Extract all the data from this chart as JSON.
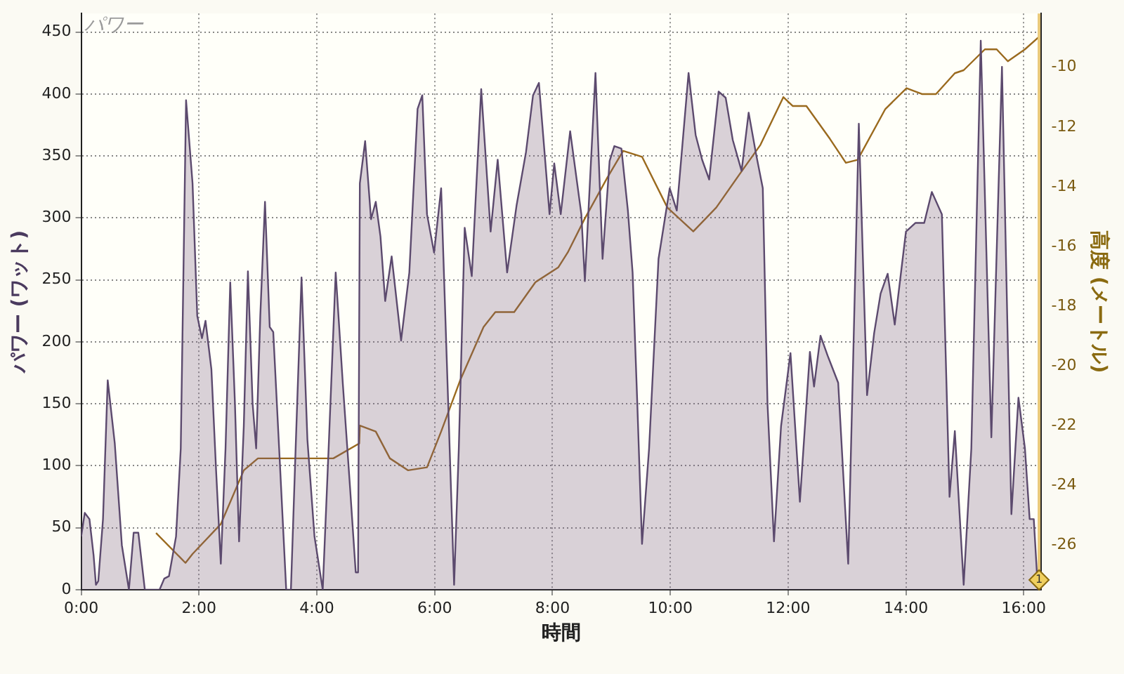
{
  "chart_data": {
    "type": "area",
    "title": "パワー",
    "xlabel": "時間",
    "ylabel": "パワー (ワット)",
    "y2label": "高度 (メートル)",
    "xlim": [
      0,
      16.3
    ],
    "xticks": [
      {
        "value": 0,
        "label": "0:00"
      },
      {
        "value": 2,
        "label": "2:00"
      },
      {
        "value": 4,
        "label": "4:00"
      },
      {
        "value": 6,
        "label": "6:00"
      },
      {
        "value": 8,
        "label": "8:00"
      },
      {
        "value": 10,
        "label": "10:00"
      },
      {
        "value": 12,
        "label": "12:00"
      },
      {
        "value": 14,
        "label": "14:00"
      },
      {
        "value": 16,
        "label": "16:00"
      }
    ],
    "ylim": [
      0,
      465
    ],
    "yticks": [
      0,
      50,
      100,
      150,
      200,
      250,
      300,
      350,
      400,
      450
    ],
    "y2lim": [
      -27.5,
      -8.2
    ],
    "y2ticks": [
      -26,
      -24,
      -22,
      -20,
      -18,
      -16,
      -14,
      -12,
      -10
    ],
    "grid": true,
    "legend": false,
    "marker": "none",
    "line_style": "solid",
    "ref_lines": [
      {
        "axis": "x",
        "value": 16.26,
        "color": "#e8c878"
      }
    ],
    "annotations": [
      {
        "text": "1",
        "x": 16.26,
        "y": 0
      }
    ],
    "series": [
      {
        "type": "area",
        "color": "#5c4a6e",
        "x": [
          0,
          0.06,
          0.14,
          0.21,
          0.25,
          0.29,
          0.37,
          0.45,
          0.57,
          0.69,
          0.81,
          0.89,
          0.97,
          1.08,
          1.33,
          1.41,
          1.49,
          1.61,
          1.69,
          1.78,
          1.89,
          1.97,
          2.05,
          2.11,
          2.21,
          2.29,
          2.37,
          2.45,
          2.53,
          2.61,
          2.68,
          2.76,
          2.83,
          2.91,
          2.97,
          3.04,
          3.12,
          3.2,
          3.26,
          3.36,
          3.48,
          3.56,
          3.64,
          3.74,
          3.84,
          3.96,
          4.1,
          4.2,
          4.32,
          4.44,
          4.56,
          4.66,
          4.7,
          4.73,
          4.82,
          4.92,
          5.0,
          5.08,
          5.16,
          5.27,
          5.43,
          5.57,
          5.71,
          5.79,
          5.87,
          5.99,
          6.11,
          6.23,
          6.33,
          6.41,
          6.51,
          6.63,
          6.79,
          6.95,
          7.07,
          7.23,
          7.39,
          7.55,
          7.67,
          7.77,
          7.95,
          8.03,
          8.14,
          8.3,
          8.49,
          8.55,
          8.73,
          8.85,
          8.97,
          9.05,
          9.17,
          9.28,
          9.36,
          9.44,
          9.52,
          9.64,
          9.8,
          9.99,
          10.11,
          10.31,
          10.43,
          10.54,
          10.66,
          10.82,
          10.94,
          11.06,
          11.21,
          11.33,
          11.45,
          11.57,
          11.65,
          11.76,
          11.88,
          12.04,
          12.2,
          12.37,
          12.44,
          12.55,
          12.67,
          12.85,
          13.02,
          13.14,
          13.2,
          13.34,
          13.46,
          13.57,
          13.69,
          13.81,
          14.0,
          14.16,
          14.31,
          14.44,
          14.61,
          14.74,
          14.83,
          14.98,
          15.11,
          15.27,
          15.45,
          15.63,
          15.79,
          15.91,
          16.02,
          16.1,
          16.17,
          16.24
        ],
        "values": [
          43,
          62,
          57,
          28,
          4,
          7,
          57,
          169,
          118,
          36,
          0,
          46,
          46,
          0,
          0,
          9,
          11,
          43,
          114,
          395,
          328,
          221,
          203,
          217,
          178,
          96,
          21,
          114,
          248,
          150,
          39,
          132,
          257,
          150,
          114,
          221,
          313,
          212,
          208,
          114,
          0,
          0,
          114,
          252,
          121,
          43,
          0,
          114,
          256,
          167,
          85,
          14,
          14,
          328,
          362,
          299,
          313,
          285,
          233,
          269,
          201,
          256,
          388,
          399,
          303,
          272,
          324,
          150,
          4,
          114,
          292,
          253,
          404,
          289,
          347,
          256,
          310,
          353,
          399,
          409,
          303,
          344,
          303,
          370,
          303,
          249,
          417,
          267,
          346,
          358,
          356,
          306,
          256,
          150,
          37,
          114,
          267,
          324,
          306,
          417,
          367,
          347,
          331,
          402,
          397,
          363,
          338,
          385,
          353,
          324,
          150,
          39,
          132,
          191,
          71,
          192,
          164,
          205,
          189,
          167,
          21,
          256,
          376,
          157,
          207,
          239,
          255,
          214,
          289,
          296,
          296,
          321,
          303,
          75,
          128,
          4,
          114,
          443,
          123,
          422,
          61,
          155,
          114,
          57,
          57,
          0
        ]
      },
      {
        "type": "line",
        "axis": "y2",
        "color": "#9a6a1e",
        "x": [
          1.27,
          1.77,
          1.89,
          2.37,
          2.76,
          3.0,
          4.28,
          4.72,
          4.73,
          5.0,
          5.24,
          5.55,
          5.87,
          6.11,
          6.43,
          6.83,
          7.03,
          7.35,
          7.71,
          8.1,
          8.26,
          8.54,
          8.93,
          9.2,
          9.52,
          9.95,
          10.39,
          10.78,
          11.17,
          11.53,
          11.92,
          12.08,
          12.31,
          12.71,
          12.98,
          13.18,
          13.65,
          14.01,
          14.28,
          14.51,
          14.83,
          14.98,
          15.34,
          15.54,
          15.73,
          16.02,
          16.25
        ],
        "values": [
          -25.6,
          -26.6,
          -26.3,
          -25.3,
          -23.5,
          -23.1,
          -23.1,
          -22.6,
          -22.0,
          -22.2,
          -23.1,
          -23.5,
          -23.4,
          -22.2,
          -20.5,
          -18.7,
          -18.2,
          -18.2,
          -17.2,
          -16.7,
          -16.2,
          -15.1,
          -13.7,
          -12.8,
          -13.0,
          -14.7,
          -15.5,
          -14.7,
          -13.6,
          -12.6,
          -11.0,
          -11.3,
          -11.3,
          -12.4,
          -13.2,
          -13.1,
          -11.4,
          -10.7,
          -10.9,
          -10.9,
          -10.2,
          -10.1,
          -9.4,
          -9.4,
          -9.8,
          -9.4,
          -9.0
        ]
      }
    ]
  }
}
